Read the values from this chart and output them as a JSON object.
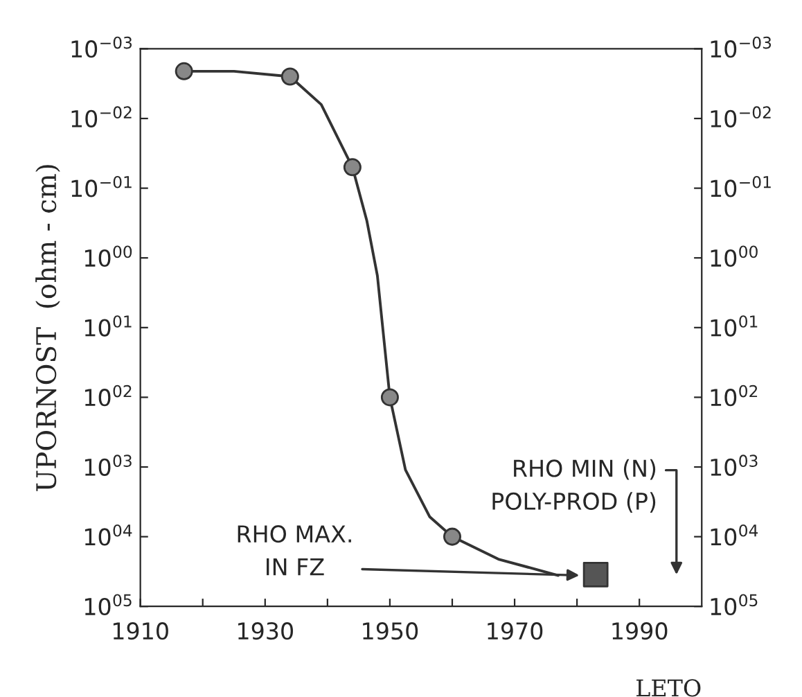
{
  "chart_data": {
    "type": "line",
    "xlabel": "LETO",
    "ylabel": "UPORNOST  (ohm - cm)",
    "series": [
      {
        "color": "#333333",
        "marker": "none",
        "line_style": "solid",
        "x": [
          1917,
          1925,
          1934,
          1939,
          1944,
          1946.3,
          1948,
          1950,
          1952.5,
          1956.4,
          1960,
          1967.4,
          1977
        ],
        "values": [
          0.0021,
          0.0021,
          0.0025,
          0.0063,
          0.05,
          0.29,
          1.8,
          100,
          1100,
          5200,
          10000,
          21000,
          36000
        ]
      },
      {
        "type": "scatter",
        "color": "#888888",
        "marker": "circle",
        "x": [
          1917,
          1934,
          1944,
          1950,
          1960
        ],
        "values": [
          0.0021,
          0.0025,
          0.05,
          100,
          10000
        ]
      },
      {
        "type": "scatter",
        "color": "#555555",
        "marker": "square",
        "x": [
          1983
        ],
        "values": [
          35000
        ]
      }
    ],
    "annotations": [
      {
        "text": "RHO MAX.\nIN FZ",
        "x": 1981,
        "y": 36000
      },
      "RHO MIN (N)\nPOLY-PROD (P)"
    ],
    "xlim": [
      1910,
      2000
    ],
    "xticks": [
      1910,
      {
        "value": 1920,
        "label": null
      },
      1930,
      {
        "value": 1940,
        "label": null
      },
      1950,
      {
        "value": 1960,
        "label": null
      },
      1970,
      {
        "value": 1980,
        "label": null
      },
      1990
    ],
    "log": "y",
    "ylim": [
      100000,
      0.001
    ],
    "yticks": [
      {
        "value": 0.001,
        "label": "10$^{−03}$"
      },
      {
        "value": 0.01,
        "label": "10$^{−02}$"
      },
      {
        "value": 0.1,
        "label": "10$^{−01}$"
      },
      {
        "value": 1,
        "label": "10$^{00}$"
      },
      {
        "value": 10,
        "label": "10$^{01}$"
      },
      {
        "value": 100,
        "label": "10$^{02}$"
      },
      {
        "value": 1000,
        "label": "10$^{03}$"
      },
      {
        "value": 10000,
        "label": "10$^{04}$"
      },
      {
        "value": 100000,
        "label": "10$^{05}$"
      }
    ],
    "grid": false,
    "legend": false
  }
}
